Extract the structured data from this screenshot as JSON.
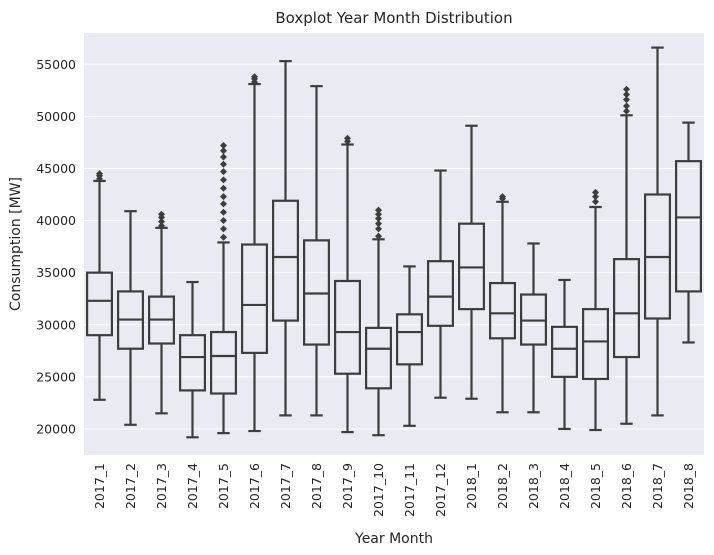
{
  "chart_data": {
    "type": "boxplot",
    "title": "Boxplot Year Month Distribution",
    "xlabel": "Year Month",
    "ylabel": "Consumption [MW]",
    "ylim": [
      17500,
      58000
    ],
    "yticks": [
      20000,
      25000,
      30000,
      35000,
      40000,
      45000,
      50000,
      55000
    ],
    "grid": true,
    "categories": [
      "2017_1",
      "2017_2",
      "2017_3",
      "2017_4",
      "2017_5",
      "2017_6",
      "2017_7",
      "2017_8",
      "2017_9",
      "2017_10",
      "2017_11",
      "2017_12",
      "2018_1",
      "2018_2",
      "2018_3",
      "2018_4",
      "2018_5",
      "2018_6",
      "2018_7",
      "2018_8"
    ],
    "colors": [
      "#e27ba0",
      "#d8879b",
      "#c09a75",
      "#a19c4e",
      "#989c42",
      "#a09c45",
      "#a29c45",
      "#5aa75c",
      "#43a97b",
      "#46a881",
      "#44a88c",
      "#46ab92",
      "#47ab98",
      "#5cb3a1",
      "#a9bcc8",
      "#c2b2d8",
      "#cba2d7",
      "#de8ad4",
      "#e88dcd",
      "#e88dcb"
    ],
    "boxes": [
      {
        "whislo": 22800,
        "q1": 29000,
        "med": 32300,
        "q3": 35000,
        "whishi": 43800,
        "fliers": [
          44000,
          44300,
          44500
        ]
      },
      {
        "whislo": 20400,
        "q1": 27700,
        "med": 30500,
        "q3": 33200,
        "whishi": 40900,
        "fliers": []
      },
      {
        "whislo": 21500,
        "q1": 28200,
        "med": 30500,
        "q3": 32700,
        "whishi": 39300,
        "fliers": [
          39500,
          39900,
          40300,
          40600
        ]
      },
      {
        "whislo": 19200,
        "q1": 23700,
        "med": 26900,
        "q3": 29000,
        "whishi": 34100,
        "fliers": []
      },
      {
        "whislo": 19600,
        "q1": 23400,
        "med": 27000,
        "q3": 29300,
        "whishi": 37900,
        "fliers": [
          38400,
          39200,
          40000,
          40800,
          41600,
          42300,
          43100,
          43900,
          44700,
          45400,
          46100,
          46700,
          47200
        ]
      },
      {
        "whislo": 19800,
        "q1": 27300,
        "med": 31900,
        "q3": 37700,
        "whishi": 53100,
        "fliers": [
          53300,
          53600,
          53800
        ]
      },
      {
        "whislo": 21300,
        "q1": 30400,
        "med": 36500,
        "q3": 41900,
        "whishi": 55300,
        "fliers": []
      },
      {
        "whislo": 21300,
        "q1": 28100,
        "med": 33000,
        "q3": 38100,
        "whishi": 52900,
        "fliers": []
      },
      {
        "whislo": 19700,
        "q1": 25300,
        "med": 29300,
        "q3": 34200,
        "whishi": 47300,
        "fliers": [
          47600,
          47900
        ]
      },
      {
        "whislo": 19400,
        "q1": 23900,
        "med": 27700,
        "q3": 29700,
        "whishi": 38200,
        "fliers": [
          38500,
          39200,
          39700,
          40200,
          40600,
          41000
        ]
      },
      {
        "whislo": 20300,
        "q1": 26200,
        "med": 29300,
        "q3": 31000,
        "whishi": 35600,
        "fliers": []
      },
      {
        "whislo": 23000,
        "q1": 29900,
        "med": 32700,
        "q3": 36100,
        "whishi": 44800,
        "fliers": []
      },
      {
        "whislo": 22900,
        "q1": 31500,
        "med": 35500,
        "q3": 39700,
        "whishi": 49100,
        "fliers": []
      },
      {
        "whislo": 21600,
        "q1": 28700,
        "med": 31100,
        "q3": 34000,
        "whishi": 41800,
        "fliers": [
          42100,
          42300
        ]
      },
      {
        "whislo": 21600,
        "q1": 28100,
        "med": 30400,
        "q3": 32900,
        "whishi": 37800,
        "fliers": []
      },
      {
        "whislo": 20000,
        "q1": 25000,
        "med": 27700,
        "q3": 29800,
        "whishi": 34300,
        "fliers": []
      },
      {
        "whislo": 19900,
        "q1": 24800,
        "med": 28400,
        "q3": 31500,
        "whishi": 41300,
        "fliers": [
          41800,
          42300,
          42700
        ]
      },
      {
        "whislo": 20500,
        "q1": 26900,
        "med": 31100,
        "q3": 36300,
        "whishi": 50100,
        "fliers": [
          50500,
          51000,
          51600,
          52100,
          52600
        ]
      },
      {
        "whislo": 21300,
        "q1": 30600,
        "med": 36500,
        "q3": 42500,
        "whishi": 56600,
        "fliers": []
      },
      {
        "whislo": 28300,
        "q1": 33200,
        "med": 40300,
        "q3": 45700,
        "whishi": 49400,
        "fliers": []
      }
    ]
  }
}
